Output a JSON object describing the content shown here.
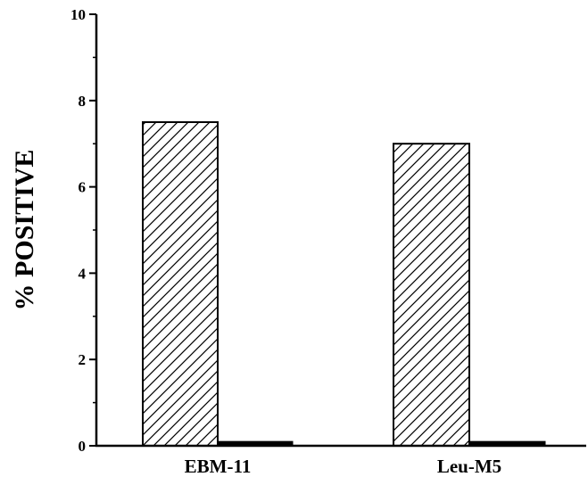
{
  "chart_data": {
    "type": "bar",
    "title": "",
    "xlabel": "",
    "ylabel": "% POSITIVE",
    "categories": [
      "EBM-11",
      "Leu-M5"
    ],
    "series": [
      {
        "values": [
          7.5,
          7.0
        ],
        "fill": "hatched"
      },
      {
        "values": [
          0.1,
          0.1
        ],
        "fill": "solid"
      }
    ],
    "ylim": [
      0,
      10
    ],
    "yticks": [
      "0",
      "2",
      "4",
      "6",
      "8",
      "10"
    ],
    "grid": false,
    "colors": {
      "ink": "#000000",
      "background": "#ffffff"
    }
  }
}
